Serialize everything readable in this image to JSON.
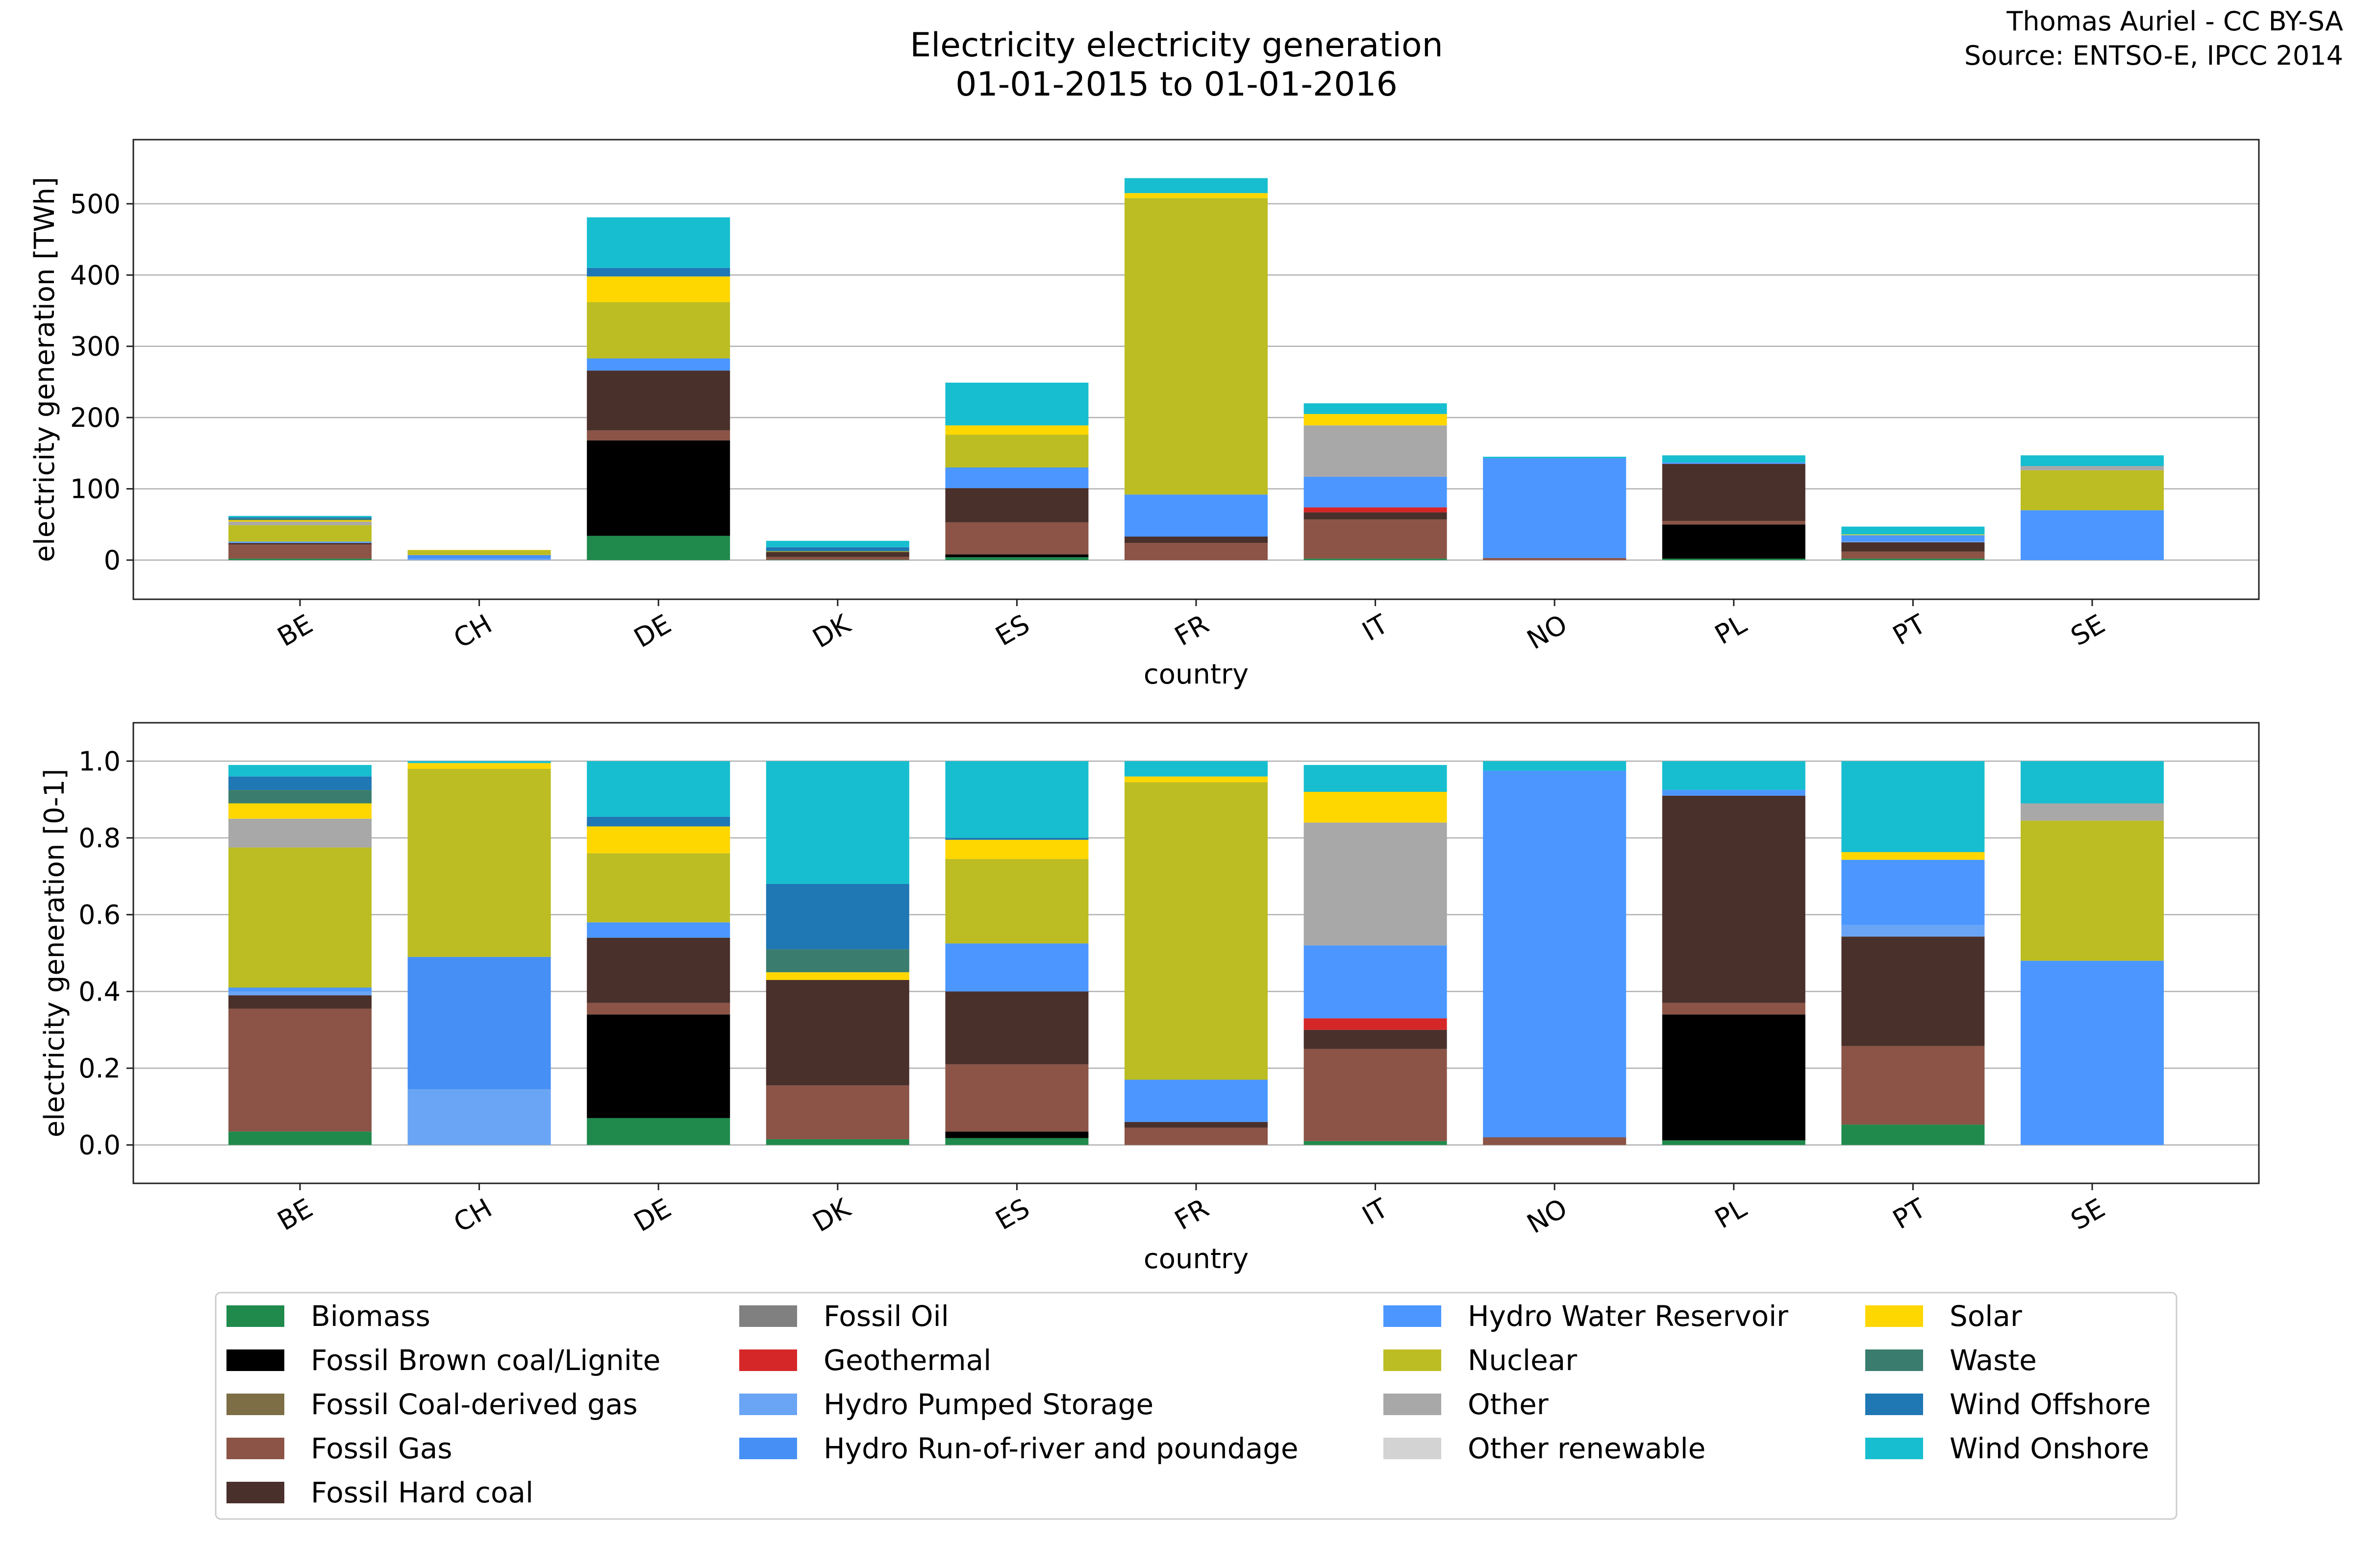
{
  "title_lines": [
    "Electricity electricity generation",
    "01-01-2015 to 01-01-2016"
  ],
  "credit_lines": [
    "Thomas Auriel - CC BY-SA",
    "Source: ENTSO-E, IPCC 2014"
  ],
  "legend": [
    {
      "name": "Biomass",
      "color": "#1f8a4c"
    },
    {
      "name": "Fossil Brown coal/Lignite",
      "color": "#000000"
    },
    {
      "name": "Fossil Coal-derived gas",
      "color": "#7d6e46"
    },
    {
      "name": "Fossil Gas",
      "color": "#8b5446"
    },
    {
      "name": "Fossil Hard coal",
      "color": "#4a302b"
    },
    {
      "name": "Fossil Oil",
      "color": "#808080"
    },
    {
      "name": "Geothermal",
      "color": "#d62728"
    },
    {
      "name": "Hydro Pumped Storage",
      "color": "#6aa5f5"
    },
    {
      "name": "Hydro Run-of-river and poundage",
      "color": "#4690f5"
    },
    {
      "name": "Hydro Water Reservoir",
      "color": "#4b97ff"
    },
    {
      "name": "Nuclear",
      "color": "#bcbd22"
    },
    {
      "name": "Other",
      "color": "#a8a8a8"
    },
    {
      "name": "Other renewable",
      "color": "#d3d3d3"
    },
    {
      "name": "Solar",
      "color": "#ffd700"
    },
    {
      "name": "Waste",
      "color": "#3a7d6e"
    },
    {
      "name": "Wind Offshore",
      "color": "#1f77b4"
    },
    {
      "name": "Wind Onshore",
      "color": "#17becf"
    }
  ],
  "chart_data": [
    {
      "type": "bar",
      "stacked": true,
      "ylabel": "electricity generation [TWh]",
      "xlabel": "country",
      "ylim": [
        -55,
        590
      ],
      "yticks": [
        0,
        100,
        200,
        300,
        400,
        500
      ],
      "grid": true,
      "categories": [
        "BE",
        "CH",
        "DE",
        "DK",
        "ES",
        "FR",
        "IT",
        "NO",
        "PL",
        "PT",
        "SE"
      ],
      "series": [
        {
          "name": "Biomass",
          "values": [
            2,
            0,
            34,
            0.5,
            4,
            0,
            2,
            0,
            2,
            2,
            0
          ]
        },
        {
          "name": "Fossil Brown coal/Lignite",
          "values": [
            0,
            0,
            134,
            0,
            4,
            0,
            0,
            0,
            48,
            0,
            0
          ]
        },
        {
          "name": "Fossil Coal-derived gas",
          "values": [
            0,
            0,
            0,
            0,
            0,
            0,
            0,
            0,
            0,
            0,
            0
          ]
        },
        {
          "name": "Fossil Gas",
          "values": [
            20,
            0,
            14,
            4,
            45,
            24,
            55,
            3,
            5,
            10,
            0
          ]
        },
        {
          "name": "Fossil Hard coal",
          "values": [
            2,
            0,
            84,
            7,
            48,
            9,
            10,
            0,
            80,
            13,
            0
          ]
        },
        {
          "name": "Fossil Oil",
          "values": [
            0,
            0,
            0,
            0,
            0,
            0,
            0,
            0,
            0,
            0,
            0
          ]
        },
        {
          "name": "Geothermal",
          "values": [
            0,
            0,
            0,
            0,
            0,
            0,
            7,
            0,
            0,
            0,
            0
          ]
        },
        {
          "name": "Hydro Pumped Storage",
          "values": [
            1,
            2,
            0,
            0,
            0,
            0,
            0,
            0,
            0,
            1,
            0
          ]
        },
        {
          "name": "Hydro Run-of-river and poundage",
          "values": [
            0,
            5,
            0,
            0,
            0,
            0,
            0,
            0,
            0,
            0,
            0
          ]
        },
        {
          "name": "Hydro Water Reservoir",
          "values": [
            1,
            0,
            17,
            0,
            29,
            59,
            43,
            140,
            2,
            9,
            70
          ]
        },
        {
          "name": "Nuclear",
          "values": [
            23,
            7,
            79,
            0,
            46,
            416,
            0,
            0,
            0,
            0,
            56
          ]
        },
        {
          "name": "Other",
          "values": [
            5,
            0,
            0,
            0,
            0,
            0,
            72,
            0,
            0,
            0,
            6
          ]
        },
        {
          "name": "Other renewable",
          "values": [
            0,
            0,
            0,
            0,
            0,
            0,
            0,
            0,
            0,
            0,
            0
          ]
        },
        {
          "name": "Solar",
          "values": [
            2,
            0.3,
            36,
            0.5,
            13,
            7,
            16,
            0,
            0,
            1,
            0
          ]
        },
        {
          "name": "Waste",
          "values": [
            2,
            0,
            0,
            1,
            0,
            0,
            0,
            0,
            0,
            0,
            0
          ]
        },
        {
          "name": "Wind Offshore",
          "values": [
            2,
            0,
            12,
            5,
            0,
            0,
            0,
            0,
            0,
            0,
            0
          ]
        },
        {
          "name": "Wind Onshore",
          "values": [
            2,
            0,
            71,
            9,
            60,
            21,
            15,
            2,
            10,
            11,
            15
          ]
        }
      ]
    },
    {
      "type": "bar",
      "stacked": true,
      "ylabel": "electricity generation [0-1]",
      "xlabel": "country",
      "ylim": [
        -0.1,
        1.1
      ],
      "yticks": [
        0.0,
        0.2,
        0.4,
        0.6,
        0.8,
        1.0
      ],
      "ytick_labels": [
        "0.0",
        "0.2",
        "0.4",
        "0.6",
        "0.8",
        "1.0"
      ],
      "grid": true,
      "categories": [
        "BE",
        "CH",
        "DE",
        "DK",
        "ES",
        "FR",
        "IT",
        "NO",
        "PL",
        "PT",
        "SE"
      ],
      "series": [
        {
          "name": "Biomass",
          "values": [
            0.035,
            0,
            0.07,
            0.015,
            0.018,
            0,
            0.01,
            0,
            0.012,
            0.053,
            0
          ]
        },
        {
          "name": "Fossil Brown coal/Lignite",
          "values": [
            0,
            0,
            0.27,
            0,
            0.017,
            0,
            0,
            0,
            0.328,
            0,
            0
          ]
        },
        {
          "name": "Fossil Coal-derived gas",
          "values": [
            0,
            0,
            0,
            0,
            0,
            0,
            0,
            0,
            0,
            0,
            0
          ]
        },
        {
          "name": "Fossil Gas",
          "values": [
            0.32,
            0,
            0.03,
            0.14,
            0.175,
            0.045,
            0.24,
            0.02,
            0.03,
            0.205,
            0
          ]
        },
        {
          "name": "Fossil Hard coal",
          "values": [
            0.035,
            0,
            0.17,
            0.275,
            0.19,
            0.015,
            0.05,
            0,
            0.54,
            0.285,
            0
          ]
        },
        {
          "name": "Fossil Oil",
          "values": [
            0,
            0,
            0,
            0,
            0,
            0,
            0,
            0,
            0,
            0,
            0
          ]
        },
        {
          "name": "Geothermal",
          "values": [
            0,
            0,
            0,
            0,
            0,
            0,
            0.03,
            0,
            0,
            0,
            0
          ]
        },
        {
          "name": "Hydro Pumped Storage",
          "values": [
            0.01,
            0.145,
            0,
            0,
            0,
            0,
            0,
            0,
            0,
            0.03,
            0
          ]
        },
        {
          "name": "Hydro Run-of-river and poundage",
          "values": [
            0,
            0.345,
            0,
            0,
            0,
            0,
            0,
            0,
            0,
            0,
            0
          ]
        },
        {
          "name": "Hydro Water Reservoir",
          "values": [
            0.01,
            0,
            0.04,
            0,
            0.125,
            0.11,
            0.19,
            0.955,
            0.015,
            0.17,
            0.48
          ]
        },
        {
          "name": "Nuclear",
          "values": [
            0.365,
            0.49,
            0.18,
            0,
            0.22,
            0.775,
            0,
            0,
            0,
            0,
            0.365
          ]
        },
        {
          "name": "Other",
          "values": [
            0.075,
            0,
            0,
            0,
            0,
            0,
            0.32,
            0,
            0,
            0,
            0.045
          ]
        },
        {
          "name": "Other renewable",
          "values": [
            0,
            0,
            0,
            0,
            0,
            0,
            0,
            0,
            0,
            0,
            0
          ]
        },
        {
          "name": "Solar",
          "values": [
            0.04,
            0.015,
            0.07,
            0.02,
            0.05,
            0.015,
            0.08,
            0,
            0,
            0.02,
            0
          ]
        },
        {
          "name": "Waste",
          "values": [
            0.035,
            0,
            0,
            0.06,
            0,
            0,
            0,
            0,
            0,
            0,
            0
          ]
        },
        {
          "name": "Wind Offshore",
          "values": [
            0.035,
            0,
            0.025,
            0.17,
            0.005,
            0,
            0,
            0,
            0,
            0,
            0
          ]
        },
        {
          "name": "Wind Onshore",
          "values": [
            0.03,
            0.005,
            0.145,
            0.32,
            0.2,
            0.04,
            0.07,
            0.025,
            0.075,
            0.237,
            0.11
          ]
        }
      ]
    }
  ]
}
